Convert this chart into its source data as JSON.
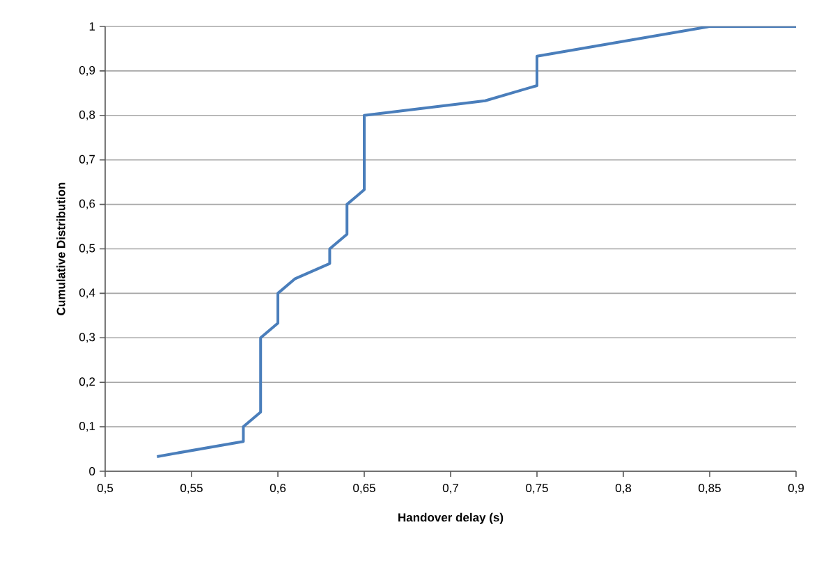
{
  "chart_data": {
    "type": "line",
    "xlabel": "Handover delay (s)",
    "ylabel": "Cumulative Distribution",
    "grid": "y",
    "x": [
      0.53,
      0.58,
      0.58,
      0.59,
      0.59,
      0.6,
      0.6,
      0.61,
      0.63,
      0.63,
      0.64,
      0.64,
      0.65,
      0.65,
      0.72,
      0.75,
      0.75,
      0.85,
      0.9
    ],
    "series": [
      {
        "color": "#4a7ebb",
        "values": [
          0.033,
          0.067,
          0.1,
          0.133,
          0.3,
          0.333,
          0.4,
          0.433,
          0.467,
          0.5,
          0.533,
          0.6,
          0.633,
          0.8,
          0.833,
          0.867,
          0.933,
          1,
          1
        ]
      }
    ],
    "xlim": [
      0.5,
      0.9
    ],
    "ylim": [
      0,
      1
    ],
    "xticks": [
      {
        "value": 0.5,
        "label": "0,5"
      },
      {
        "value": 0.55,
        "label": "0,55"
      },
      {
        "value": 0.6,
        "label": "0,6"
      },
      {
        "value": 0.65,
        "label": "0,65"
      },
      {
        "value": 0.7,
        "label": "0,7"
      },
      {
        "value": 0.75,
        "label": "0,75"
      },
      {
        "value": 0.8,
        "label": "0,8"
      },
      {
        "value": 0.85,
        "label": "0,85"
      },
      {
        "value": 0.9,
        "label": "0,9"
      }
    ],
    "yticks": [
      0,
      {
        "value": 0.1,
        "label": "0,1"
      },
      {
        "value": 0.2,
        "label": "0,2"
      },
      {
        "value": 0.3,
        "label": "0,3"
      },
      {
        "value": 0.4,
        "label": "0,4"
      },
      {
        "value": 0.5,
        "label": "0,5"
      },
      {
        "value": 0.6,
        "label": "0,6"
      },
      {
        "value": 0.7,
        "label": "0,7"
      },
      {
        "value": 0.8,
        "label": "0,8"
      },
      {
        "value": 0.9,
        "label": "0,9"
      },
      1
    ]
  }
}
